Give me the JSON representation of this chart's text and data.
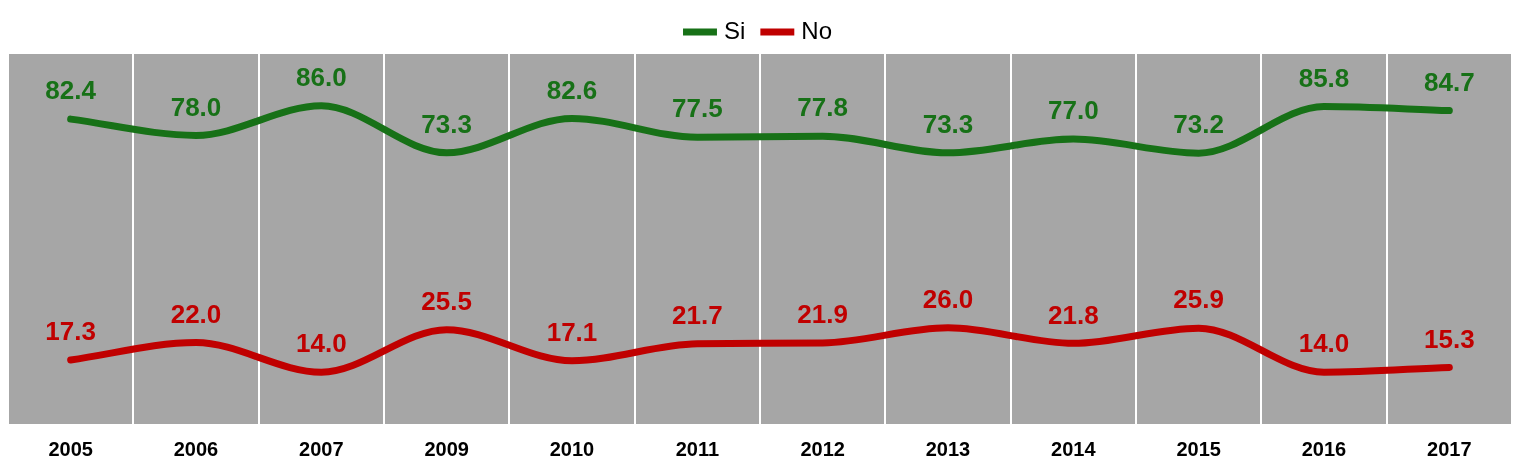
{
  "chart_data": {
    "type": "line",
    "categories": [
      "2005",
      "2006",
      "2007",
      "2009",
      "2010",
      "2011",
      "2012",
      "2013",
      "2014",
      "2015",
      "2016",
      "2017"
    ],
    "series": [
      {
        "name": "Si",
        "color": "#177117",
        "values": [
          82.4,
          78.0,
          86.0,
          73.3,
          82.6,
          77.5,
          77.8,
          73.3,
          77.0,
          73.2,
          85.8,
          84.7
        ],
        "value_labels": [
          "82.4",
          "78.0",
          "86.0",
          "73.3",
          "82.6",
          "77.5",
          "77.8",
          "73.3",
          "77.0",
          "73.2",
          "85.8",
          "84.7"
        ]
      },
      {
        "name": "No",
        "color": "#c00000",
        "values": [
          17.3,
          22.0,
          14.0,
          25.5,
          17.1,
          21.7,
          21.9,
          26.0,
          21.8,
          25.9,
          14.0,
          15.3
        ],
        "value_labels": [
          "17.3",
          "22.0",
          "14.0",
          "25.5",
          "17.1",
          "21.7",
          "21.9",
          "26.0",
          "21.8",
          "25.9",
          "14.0",
          "15.3"
        ]
      }
    ],
    "ylim": [
      0,
      100
    ],
    "tick_labels": "x",
    "grid": "x",
    "legend": "top",
    "marker": "none",
    "line_style": "solid"
  }
}
